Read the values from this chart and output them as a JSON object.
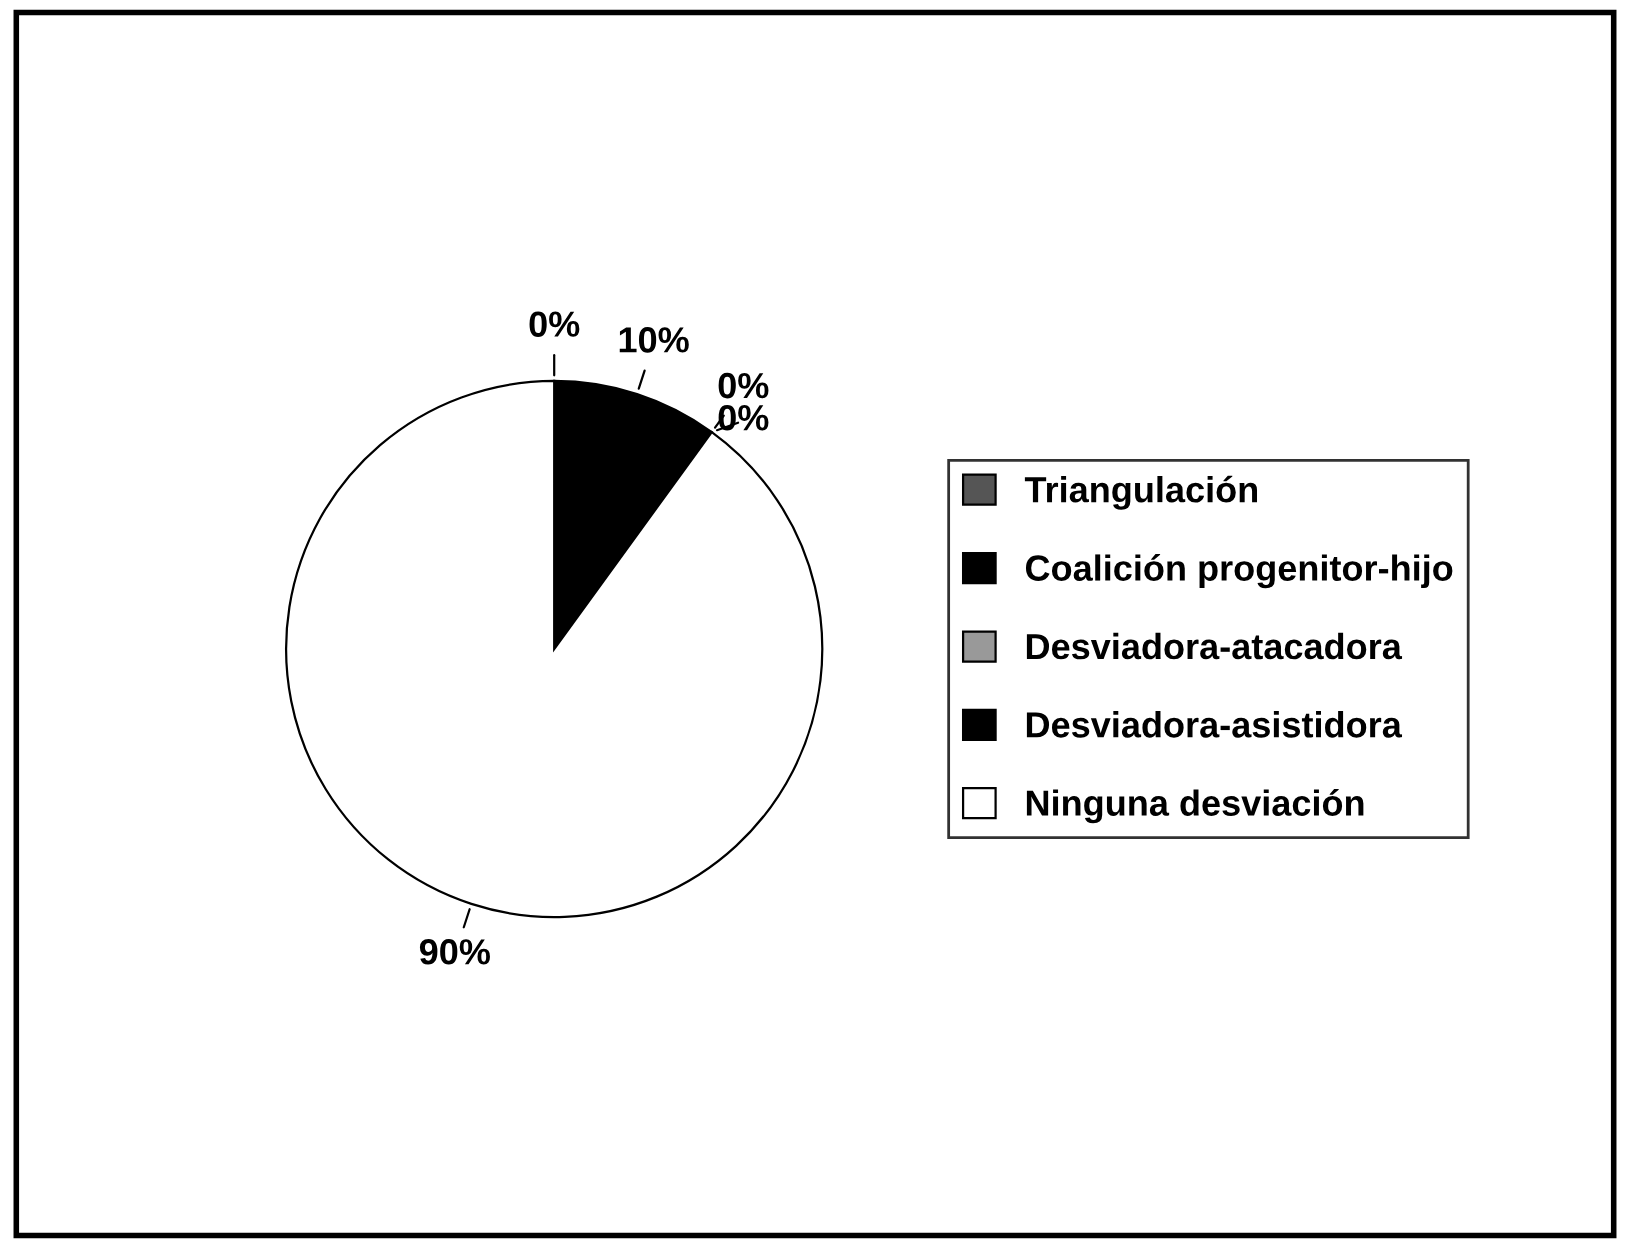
{
  "chart_data": {
    "type": "pie",
    "categories": [
      "Triangulación",
      "Coalición progenitor-hijo",
      "Desviadora-atacadora",
      "Desviadora-asistidora",
      "Ninguna desviación"
    ],
    "values": [
      0,
      10,
      0,
      0,
      90
    ],
    "colors": [
      "#555555",
      "#000000",
      "#999999",
      "#000000",
      "#ffffff"
    ],
    "value_labels": [
      "0%",
      "10%",
      "0%",
      "0%",
      "90%"
    ],
    "legend": "right"
  }
}
